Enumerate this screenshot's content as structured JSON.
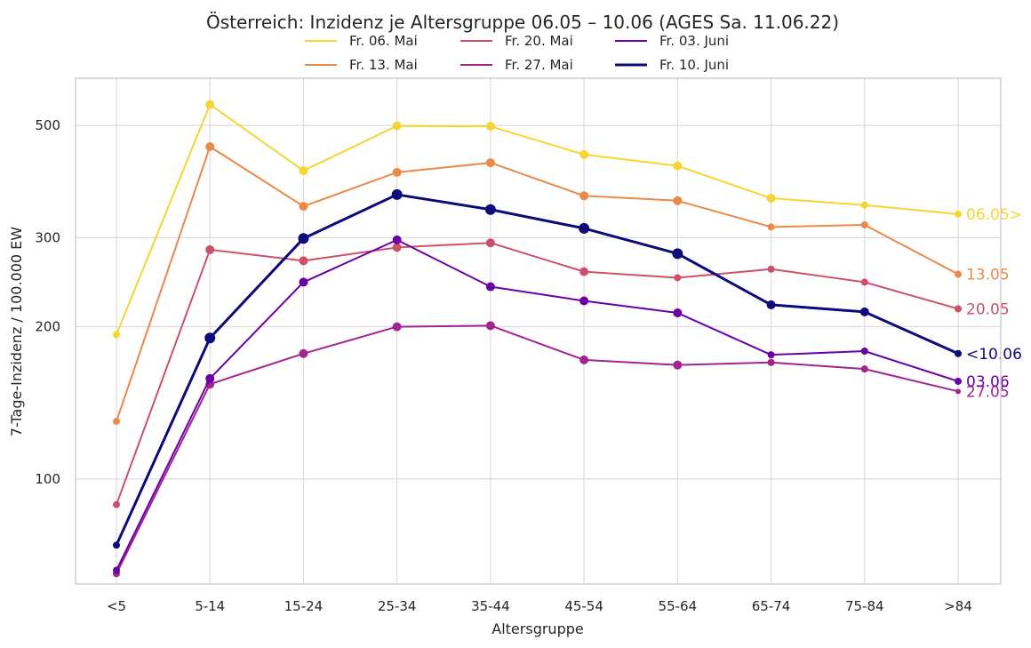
{
  "chart_data": {
    "type": "line",
    "title": "Österreich: Inzidenz je Altersgruppe 06.05 – 10.06 (AGES Sa. 11.06.22)",
    "xlabel": "Altersgruppe",
    "ylabel": "7-Tage-Inzidenz / 100.000 EW",
    "y_scale": "log",
    "ylim": [
      62,
      620
    ],
    "y_ticks": [
      100,
      200,
      300,
      500
    ],
    "grid": true,
    "legend_position": "top-center",
    "categories": [
      "<5",
      "5-14",
      "15-24",
      "25-34",
      "35-44",
      "45-54",
      "55-64",
      "65-74",
      "75-84",
      ">84"
    ],
    "series": [
      {
        "name": "Fr. 06. Mai",
        "end_label": "06.05>",
        "color": "#f6d531",
        "line_width": 2,
        "values": [
          193,
          550,
          407,
          499,
          498,
          438,
          416,
          359,
          348,
          334
        ],
        "marker_sizes": [
          4,
          5,
          5,
          5,
          5,
          5,
          5,
          5,
          4,
          4
        ]
      },
      {
        "name": "Fr. 13. Mai",
        "end_label": "13.05",
        "color": "#ea8a46",
        "line_width": 2,
        "values": [
          130,
          454,
          346,
          404,
          422,
          363,
          355,
          315,
          318,
          254
        ],
        "marker_sizes": [
          4,
          5,
          5,
          5,
          5,
          5,
          5,
          4,
          4,
          4
        ]
      },
      {
        "name": "Fr. 20. Mai",
        "end_label": "20.05",
        "color": "#cc5068",
        "line_width": 2,
        "values": [
          89,
          284,
          270,
          287,
          293,
          257,
          250,
          260,
          245,
          217
        ],
        "marker_sizes": [
          4,
          5,
          5,
          5,
          5,
          5,
          4,
          4,
          4,
          4
        ]
      },
      {
        "name": "Fr. 27. Mai",
        "end_label": "27.05",
        "color": "#a4248f",
        "line_width": 2,
        "values": [
          65,
          154,
          177,
          200,
          201,
          172,
          168,
          170,
          165,
          149
        ],
        "marker_sizes": [
          4,
          5,
          5,
          5,
          5,
          5,
          5,
          4,
          4,
          3
        ]
      },
      {
        "name": "Fr. 03. Juni",
        "end_label": "03.06",
        "color": "#6a00a8",
        "line_width": 2,
        "values": [
          66,
          158,
          245,
          297,
          240,
          225,
          213,
          176,
          179,
          156
        ],
        "marker_sizes": [
          4,
          5,
          5,
          5,
          5,
          5,
          5,
          4,
          4,
          4
        ]
      },
      {
        "name": "Fr. 10. Juni",
        "end_label": "<10.06",
        "color": "#0d0a7a",
        "line_width": 3,
        "values": [
          74,
          190,
          299,
          365,
          341,
          313,
          279,
          221,
          214,
          177
        ],
        "marker_sizes": [
          4,
          6,
          6,
          6,
          6,
          6,
          6,
          5,
          5,
          4
        ]
      }
    ]
  }
}
